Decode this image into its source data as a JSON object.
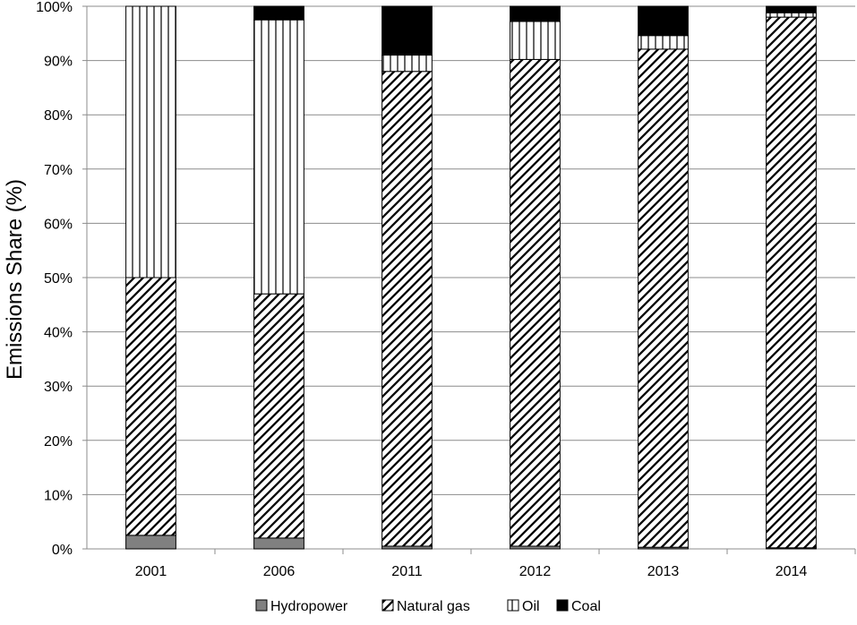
{
  "chart_data": {
    "type": "bar",
    "stacked": true,
    "percent_stacked": true,
    "categories": [
      "2001",
      "2006",
      "2011",
      "2012",
      "2013",
      "2014"
    ],
    "series": [
      {
        "name": "Hydropower",
        "values": [
          2.5,
          2.0,
          0.5,
          0.5,
          0.3,
          0.2
        ],
        "fill": "#808080",
        "pattern": "solid"
      },
      {
        "name": "Natural gas",
        "values": [
          47.5,
          45.0,
          87.5,
          89.7,
          91.8,
          97.8
        ],
        "fill": "#ffffff",
        "pattern": "diagonal"
      },
      {
        "name": "Oil",
        "values": [
          50.0,
          50.5,
          3.0,
          7.0,
          2.5,
          0.8
        ],
        "fill": "#ffffff",
        "pattern": "vertical"
      },
      {
        "name": "Coal",
        "values": [
          0.0,
          2.5,
          9.0,
          2.8,
          5.4,
          1.2
        ],
        "fill": "#000000",
        "pattern": "solid"
      }
    ],
    "title": "",
    "xlabel": "",
    "ylabel": "Emissions Share (%)",
    "ylim": [
      0,
      100
    ],
    "yticks": [
      "0%",
      "10%",
      "20%",
      "30%",
      "40%",
      "50%",
      "60%",
      "70%",
      "80%",
      "90%",
      "100%"
    ],
    "grid": true,
    "legend_position": "bottom"
  }
}
